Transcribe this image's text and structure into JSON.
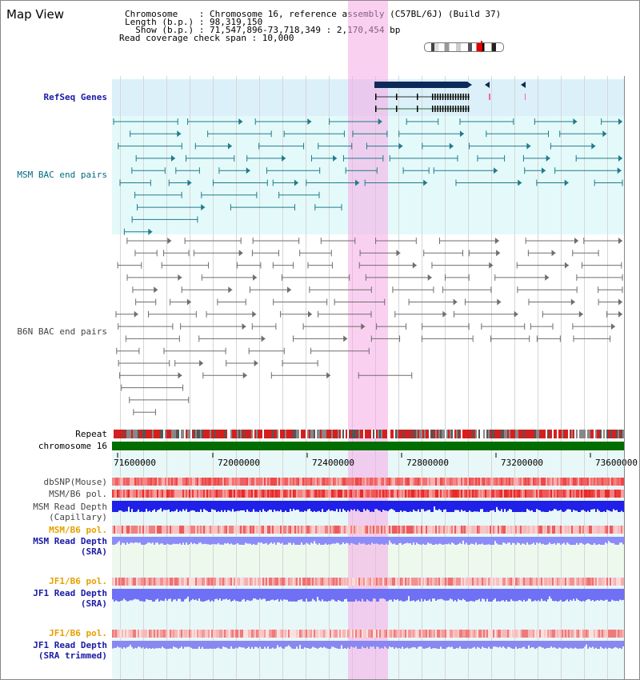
{
  "app_title": "Map View",
  "info": {
    "chromosome": "Chromosome    : Chromosome 16, reference assembly (C57BL/6J) (Build 37)",
    "length": "Length (b.p.) : 98,319,150",
    "show": "  Show (b.p.) : 71,547,896-73,718,349 : 2,170,454 bp",
    "coverage": "Read coverage check span : 10,000"
  },
  "tracks": {
    "refseq": "RefSeq Genes",
    "msm_bac": "MSM BAC end pairs",
    "b6n_bac": "B6N BAC end pairs",
    "repeat": "Repeat",
    "chromosome": "chromosome 16",
    "dbsnp": "dbSNP(Mouse)",
    "msm_b6_pol": "MSM/B6 pol.",
    "msm_read_depth": "MSM Read Depth",
    "capillary": "(Capillary)",
    "msm_b6_pol_sra": "MSM/B6 pol.",
    "msm_read_depth_sra": "MSM Read Depth",
    "sra": "(SRA)",
    "jf1_b6_pol": "JF1/B6 pol.",
    "jf1_read_depth": "JF1 Read Depth",
    "sra2": "(SRA)",
    "jf1_b6_pol_trim": "JF1/B6 pol.",
    "jf1_read_depth_trim": "JF1 Read Depth",
    "sra_trimmed": "(SRA trimmed)"
  },
  "axis_ticks": [
    "71600000",
    "72000000",
    "72400000",
    "72800000",
    "73200000",
    "73600000"
  ],
  "colors": {
    "refseq_bg": "#dcf0fa",
    "msm_bg": "#e4fafa",
    "lower_bg": "#ecfaec",
    "highlight": "#f5aae6",
    "chromosome_bar": "#007000",
    "repeat_red": "#e02020",
    "depth_blue": "#1e1ee6",
    "depth_light": "#8c8cff"
  }
}
